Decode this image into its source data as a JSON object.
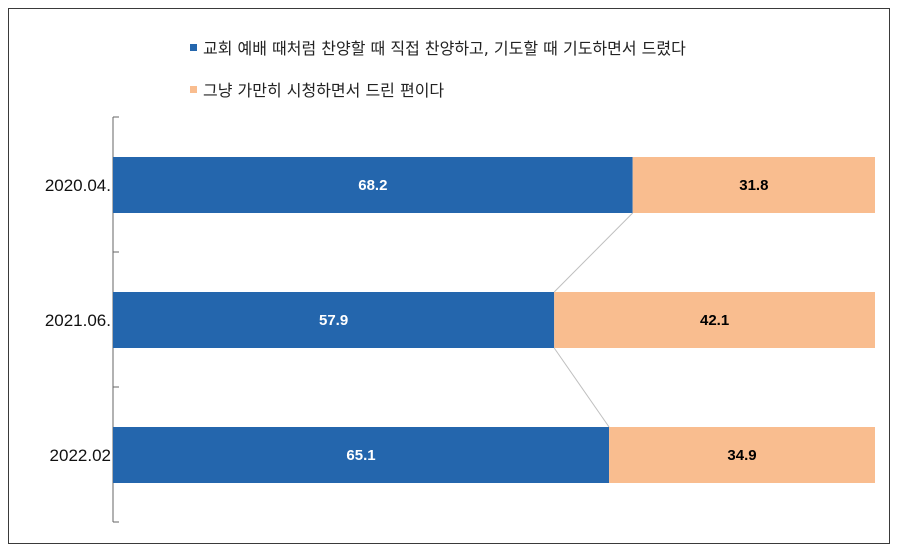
{
  "chart_data": {
    "type": "bar",
    "orientation": "horizontal",
    "stacked": true,
    "percent_stacked": true,
    "title": "",
    "xlabel": "",
    "ylabel": "",
    "categories": [
      "2020.04.",
      "2021.06.",
      "2022.02"
    ],
    "series": [
      {
        "name": "교회 예배 때처럼 찬양할 때 직접 찬양하고, 기도할 때 기도하면서 드렸다",
        "values": [
          68.2,
          57.9,
          65.1
        ],
        "color": "#2466ad",
        "label_color": "#ffffff"
      },
      {
        "name": "그냥 가만히 시청하면서 드린 편이다",
        "values": [
          31.8,
          42.1,
          34.9
        ],
        "color": "#f9bd8f",
        "label_color": "#000000"
      }
    ],
    "xlim": [
      0,
      100
    ],
    "grid": false,
    "legend_position": "top",
    "series_connector_lines": true
  }
}
